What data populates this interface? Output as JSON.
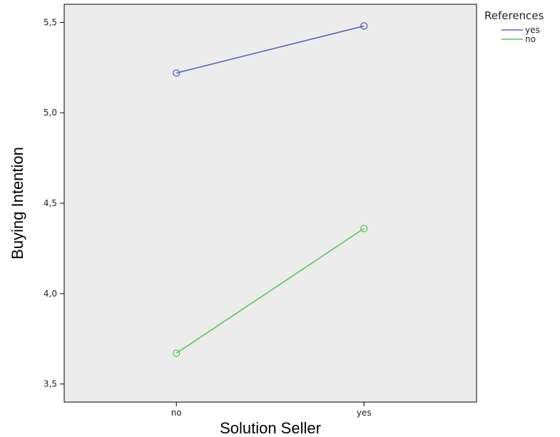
{
  "chart_data": {
    "type": "line",
    "title": "",
    "xlabel": "Solution Seller",
    "ylabel": "Buying Intention",
    "categories": [
      "no",
      "yes"
    ],
    "ylim": [
      3.4,
      5.6
    ],
    "yticks": [
      "3,5",
      "4,0",
      "4,5",
      "5,0",
      "5,5"
    ],
    "ytick_values": [
      3.5,
      4.0,
      4.5,
      5.0,
      5.5
    ],
    "grid": false,
    "background": "#ececec",
    "legend": {
      "title": "References",
      "placement": "top-right"
    },
    "series": [
      {
        "name": "yes",
        "color": "#5866b8",
        "values": [
          5.22,
          5.48
        ]
      },
      {
        "name": "no",
        "color": "#5ac55a",
        "values": [
          3.67,
          4.36
        ]
      }
    ]
  }
}
